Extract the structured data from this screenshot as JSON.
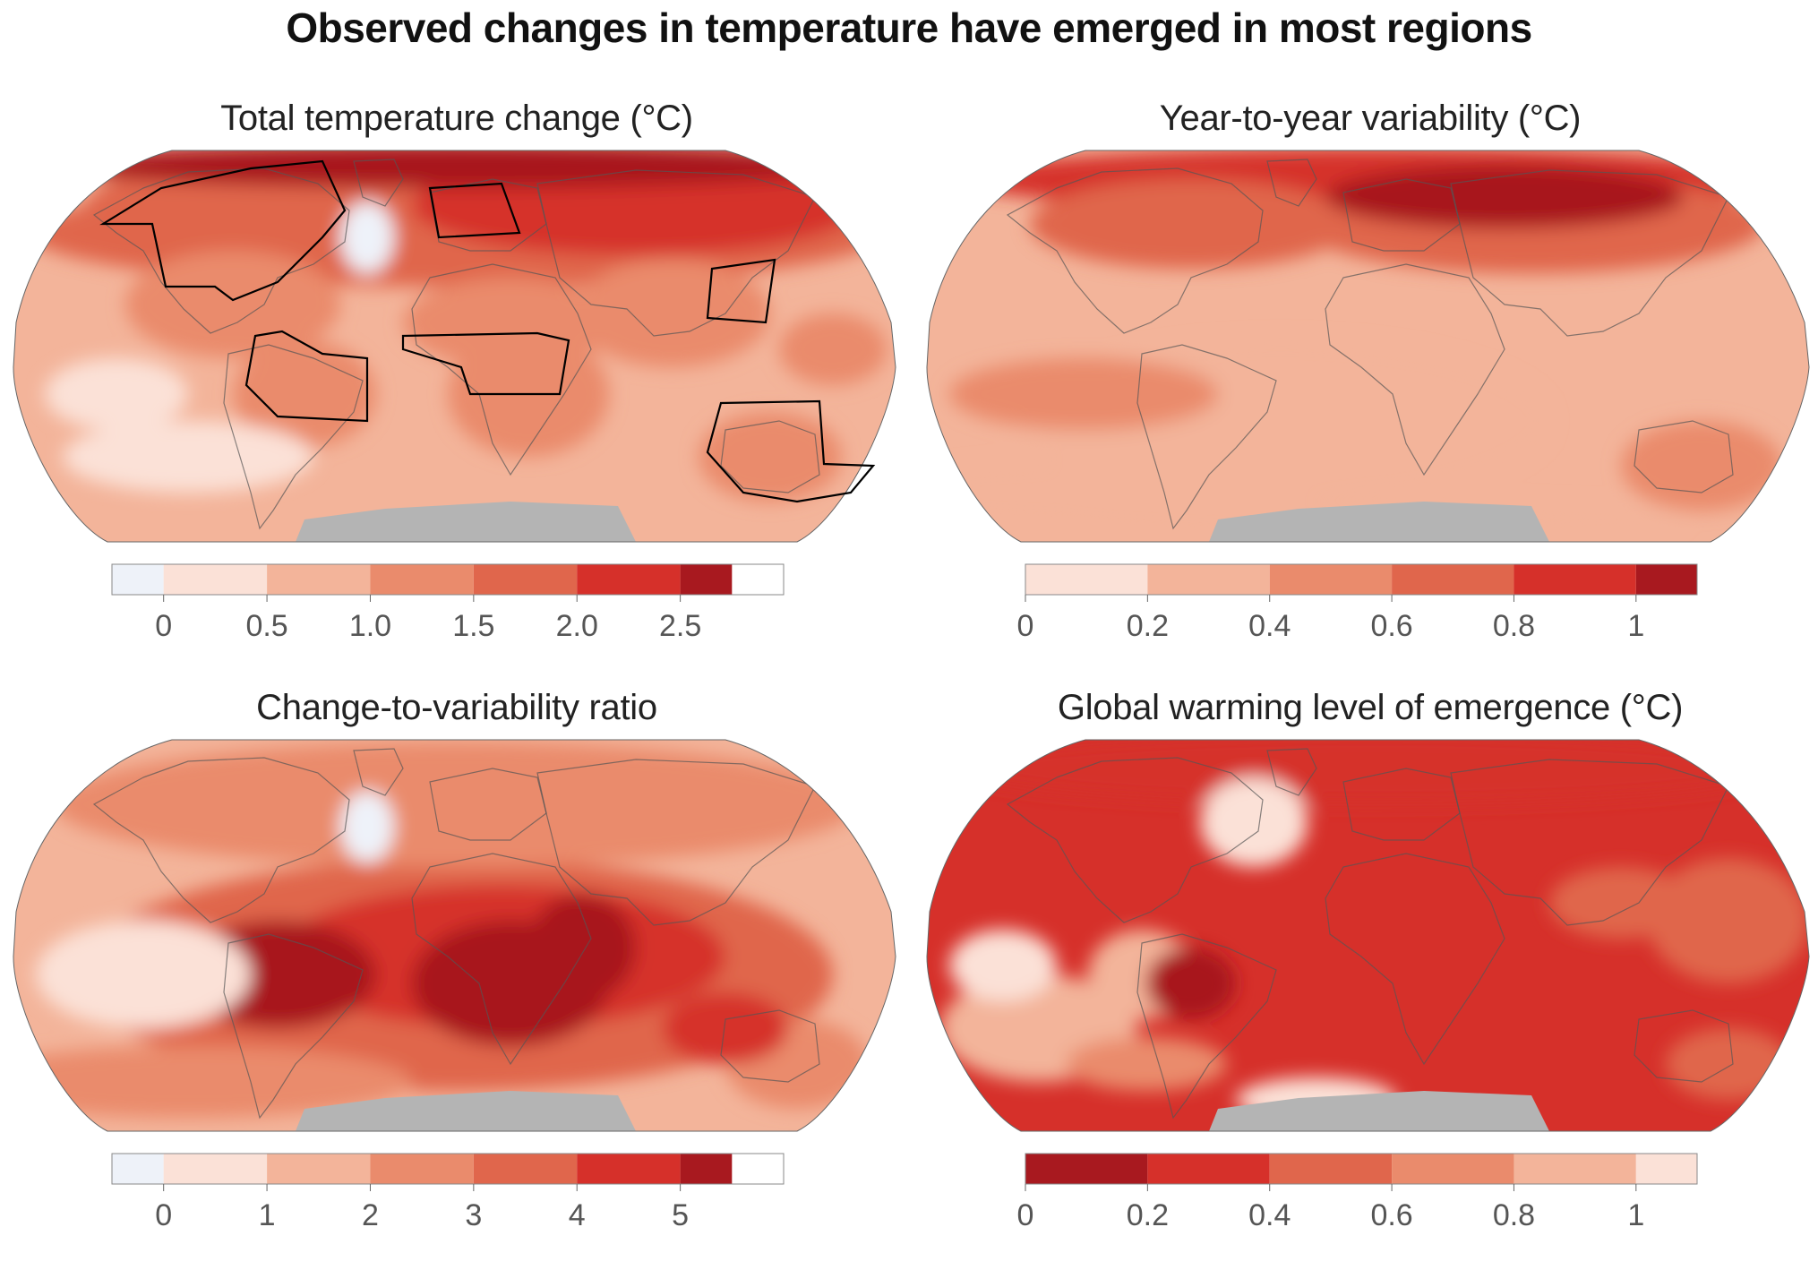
{
  "title": "Observed changes in temperature have emerged in most regions",
  "colors": {
    "c_neg": "#eef2f9",
    "c0": "#fbe1d7",
    "c1": "#f3b49a",
    "c2": "#ea8b6c",
    "c3": "#e0664c",
    "c4": "#d6302a",
    "c5": "#a8191f",
    "land_ice": "#b4b4b4",
    "region_outline": "#000000"
  },
  "panels": [
    {
      "title": "Total temperature change (°C)",
      "colorbar": {
        "ticks": [
          "0",
          "0.5",
          "1.0",
          "1.5",
          "2.0",
          "2.5"
        ],
        "colors": [
          "#eef2f9",
          "#fbe1d7",
          "#f3b49a",
          "#ea8b6c",
          "#e0664c",
          "#d6302a",
          "#a8191f"
        ],
        "has_under_segment": true
      }
    },
    {
      "title": "Year-to-year variability (°C)",
      "colorbar": {
        "ticks": [
          "0",
          "0.2",
          "0.4",
          "0.6",
          "0.8",
          "1"
        ],
        "colors": [
          "#fbe1d7",
          "#f3b49a",
          "#ea8b6c",
          "#e0664c",
          "#d6302a",
          "#a8191f"
        ],
        "has_under_segment": false
      }
    },
    {
      "title": "Change-to-variability ratio",
      "colorbar": {
        "ticks": [
          "0",
          "1",
          "2",
          "3",
          "4",
          "5"
        ],
        "colors": [
          "#eef2f9",
          "#fbe1d7",
          "#f3b49a",
          "#ea8b6c",
          "#e0664c",
          "#d6302a",
          "#a8191f"
        ],
        "has_under_segment": true
      }
    },
    {
      "title": "Global warming level of emergence (°C)",
      "colorbar": {
        "ticks": [
          "0",
          "0.2",
          "0.4",
          "0.6",
          "0.8",
          "1"
        ],
        "colors": [
          "#a8191f",
          "#d6302a",
          "#e0664c",
          "#ea8b6c",
          "#f3b49a",
          "#fbe1d7"
        ],
        "has_under_segment": false
      }
    }
  ]
}
